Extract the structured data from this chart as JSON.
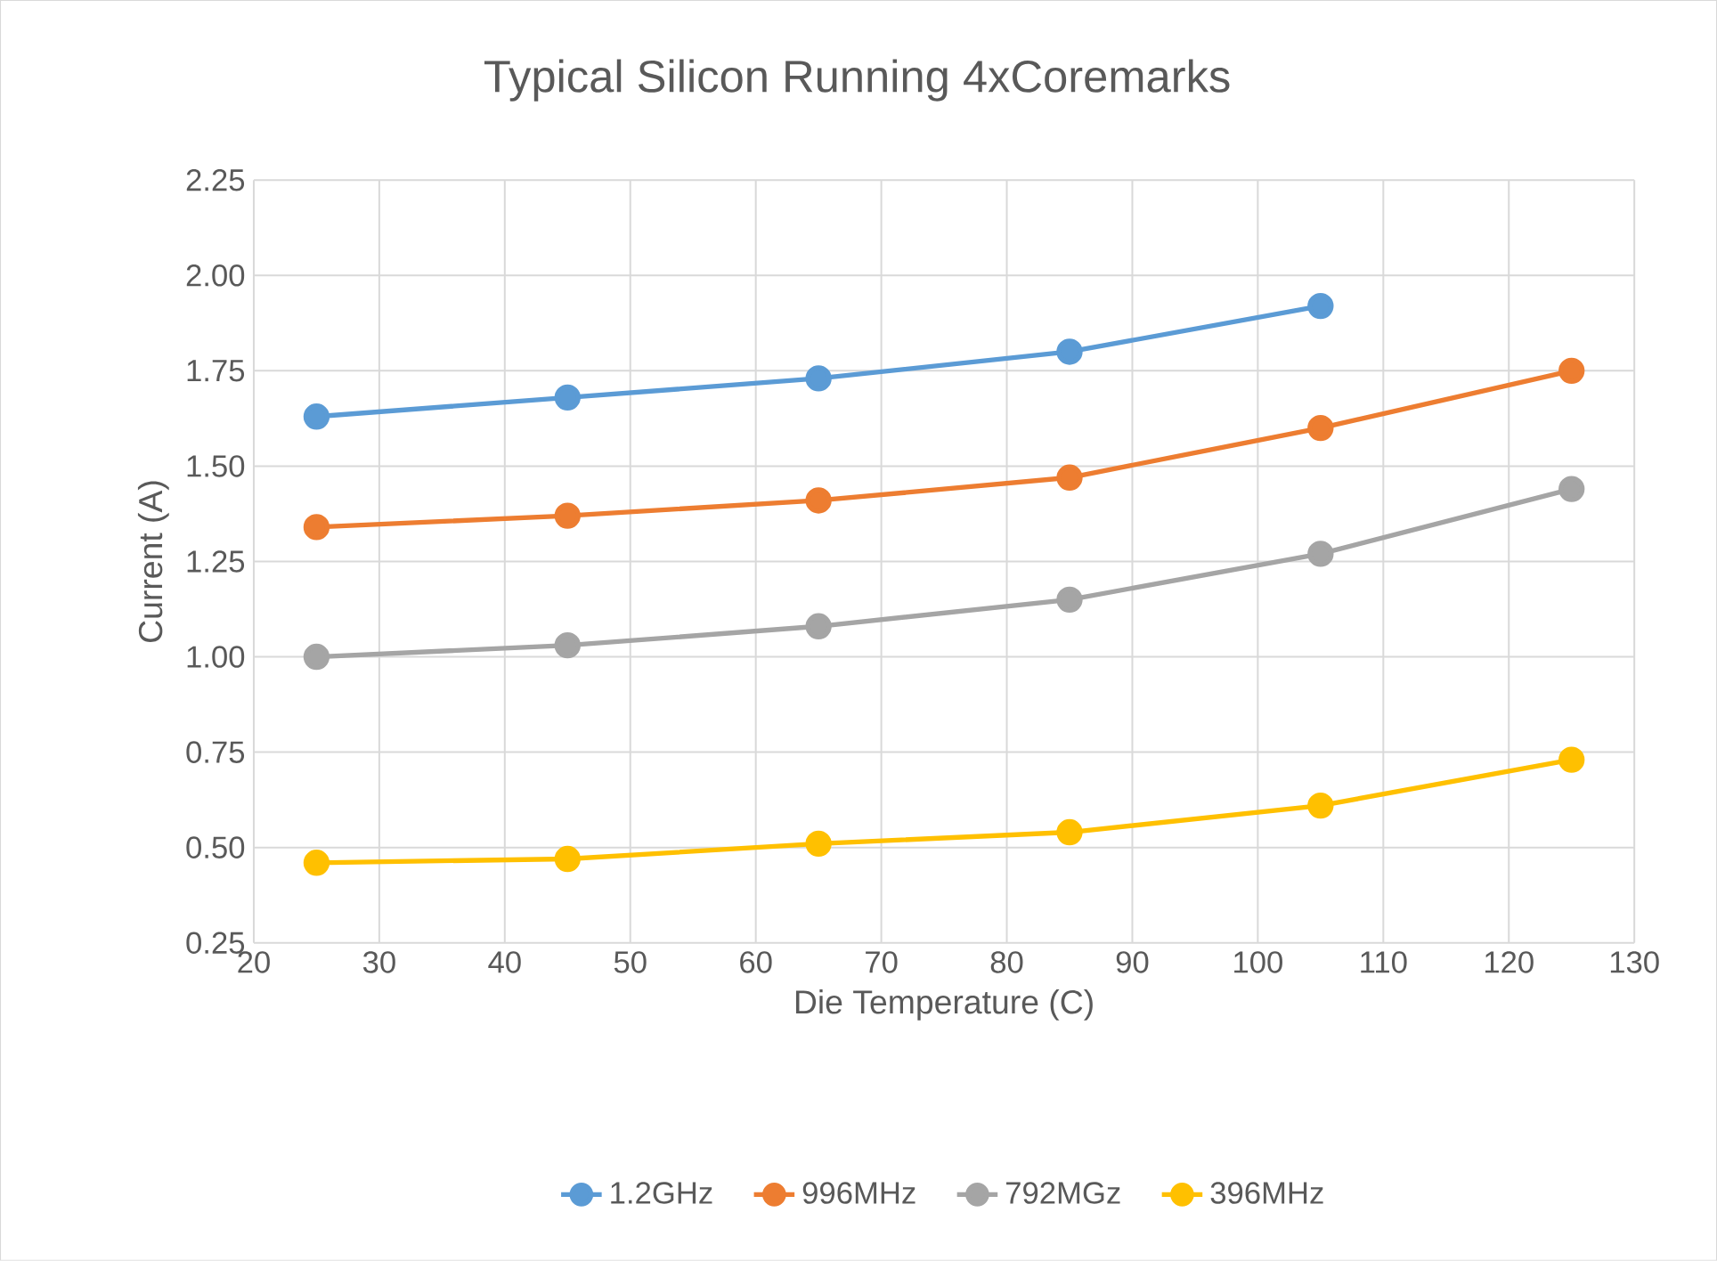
{
  "chart_data": {
    "type": "line",
    "title": "Typical Silicon Running 4xCoremarks",
    "xlabel": "Die Temperature (C)",
    "ylabel": "Current (A)",
    "x": [
      25,
      45,
      65,
      85,
      105,
      125
    ],
    "series": [
      {
        "name": "1.2GHz",
        "color": "#5b9bd5",
        "values": [
          1.63,
          1.68,
          1.73,
          1.8,
          1.92,
          null
        ]
      },
      {
        "name": "996MHz",
        "color": "#ed7d31",
        "values": [
          1.34,
          1.37,
          1.41,
          1.47,
          1.6,
          1.75
        ]
      },
      {
        "name": "792MGz",
        "color": "#a5a5a5",
        "values": [
          1.0,
          1.03,
          1.08,
          1.15,
          1.27,
          1.44
        ]
      },
      {
        "name": "396MHz",
        "color": "#ffc000",
        "values": [
          0.46,
          0.47,
          0.51,
          0.54,
          0.61,
          0.73
        ]
      }
    ],
    "xlim": [
      20,
      130
    ],
    "ylim": [
      0.25,
      2.25
    ],
    "xticks": [
      20,
      30,
      40,
      50,
      60,
      70,
      80,
      90,
      100,
      110,
      120,
      130
    ],
    "yticks": [
      {
        "value": 0.25,
        "label": "0.25"
      },
      {
        "value": 0.5,
        "label": "0.50"
      },
      {
        "value": 0.75,
        "label": "0.75"
      },
      {
        "value": 1,
        "label": "1.00"
      },
      {
        "value": 1.25,
        "label": "1.25"
      },
      {
        "value": 1.5,
        "label": "1.50"
      },
      {
        "value": 1.75,
        "label": "1.75"
      },
      {
        "value": 2,
        "label": "2.00"
      },
      {
        "value": 2.25,
        "label": "2.25"
      }
    ],
    "grid": true,
    "legend": "bottom",
    "marker": "circle",
    "line_style": "solid"
  }
}
